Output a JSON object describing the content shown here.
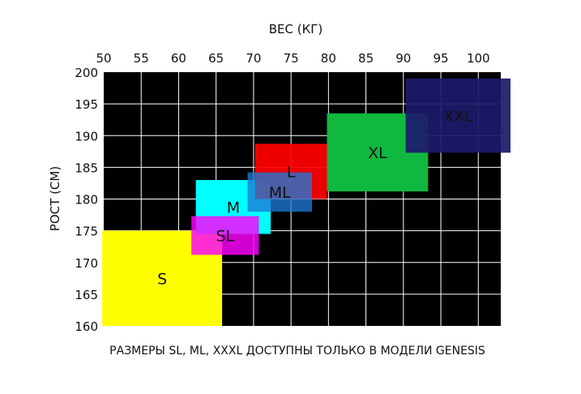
{
  "chart_data": {
    "type": "heatmap",
    "title": "",
    "xlabel": "ВЕС (КГ)",
    "ylabel": "РОСТ (СМ)",
    "xlim": [
      50,
      103
    ],
    "ylim": [
      160,
      200
    ],
    "x_ticks": [
      50,
      55,
      60,
      65,
      70,
      75,
      80,
      85,
      90,
      95,
      100
    ],
    "y_ticks": [
      160,
      165,
      170,
      175,
      180,
      185,
      190,
      195,
      200
    ],
    "x_axis_position": "top",
    "grid": true,
    "background_color": "#000000",
    "grid_color": "#ffffff",
    "regions": [
      {
        "label": "S",
        "x": [
          49.8,
          65.8
        ],
        "y": [
          160,
          175
        ],
        "color": "#ffff00",
        "opacity": 1.0,
        "label_color": "#111111"
      },
      {
        "label": "M",
        "x": [
          62.3,
          72.3
        ],
        "y": [
          174.5,
          183
        ],
        "color": "#00ffff",
        "opacity": 1.0,
        "label_color": "#111111"
      },
      {
        "label": "SL",
        "x": [
          61.7,
          70.7
        ],
        "y": [
          171.2,
          177.3
        ],
        "color": "#ff00ff",
        "opacity": 0.82,
        "label_color": "#111111"
      },
      {
        "label": "L",
        "x": [
          70.2,
          79.8
        ],
        "y": [
          180,
          188.7
        ],
        "color": "#ff0000",
        "opacity": 0.93,
        "label_color": "#111111"
      },
      {
        "label": "ML",
        "x": [
          69.2,
          77.8
        ],
        "y": [
          178,
          184.2
        ],
        "color": "#1e78d6",
        "opacity": 0.78,
        "label_color": "#111111"
      },
      {
        "label": "XL",
        "x": [
          79.8,
          93.3
        ],
        "y": [
          181.2,
          193.5
        ],
        "color": "#10b83f",
        "opacity": 1.0,
        "label_color": "#111111"
      },
      {
        "label": "XXL",
        "x": [
          90.3,
          104.3
        ],
        "y": [
          187.3,
          199.0
        ],
        "color": "#1c1a6b",
        "opacity": 0.93,
        "label_color": "#ffffff"
      }
    ],
    "annotations": [
      "РАЗМЕРЫ SL, ML, XXXL ДОСТУПНЫ ТОЛЬКО В МОДЕЛИ GENESIS"
    ]
  }
}
